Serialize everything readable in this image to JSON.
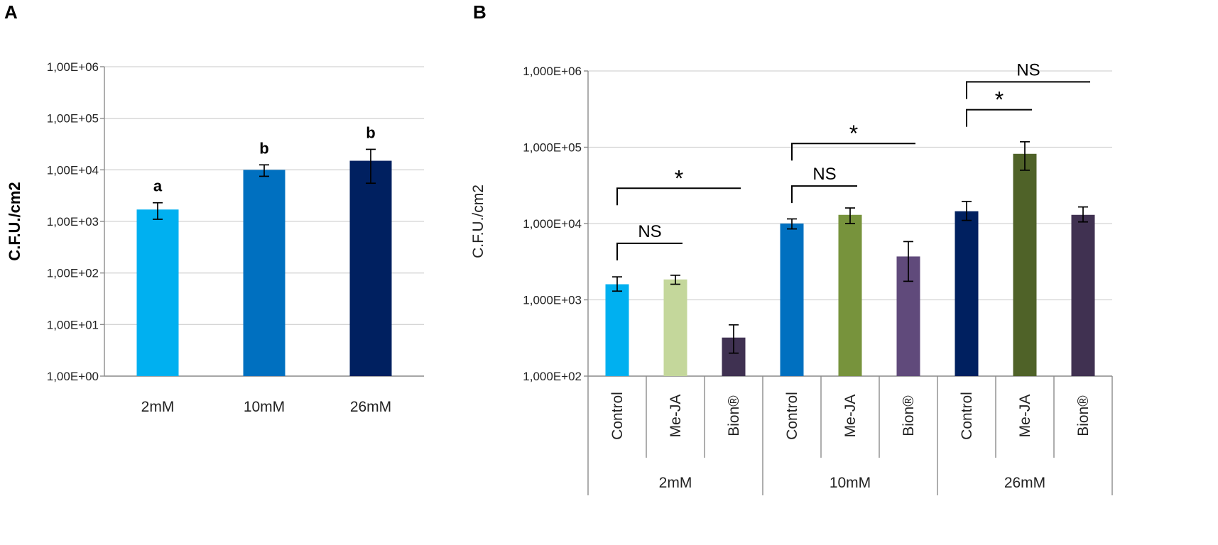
{
  "panels": [
    {
      "letter": "A"
    },
    {
      "letter": "B"
    }
  ],
  "chart_data": [
    {
      "panel": "A",
      "type": "bar",
      "scale": "log",
      "title": "",
      "ylabel": "C.F.U./cm2",
      "xlabel": "",
      "ylim": [
        1,
        1000000
      ],
      "yticks": [
        1,
        10,
        100,
        1000,
        10000,
        100000,
        1000000
      ],
      "ytick_labels": [
        "1,00E+00",
        "1,00E+01",
        "1,00E+02",
        "1,00E+03",
        "1,00E+04",
        "1,00E+05",
        "1,00E+06"
      ],
      "categories": [
        "2mM",
        "10mM",
        "26mM"
      ],
      "values": [
        1700,
        10000,
        15000
      ],
      "error_low": [
        1100,
        7500,
        5500
      ],
      "error_high": [
        2300,
        12500,
        25000
      ],
      "colors": [
        "#00b0f0",
        "#0070c0",
        "#002060"
      ],
      "annotations": [
        "a",
        "b",
        "b"
      ]
    },
    {
      "panel": "B",
      "type": "bar",
      "scale": "log",
      "title": "",
      "ylabel": "C.F.U./cm2",
      "xlabel": "",
      "ylim": [
        100,
        1000000
      ],
      "yticks": [
        100,
        1000,
        10000,
        100000,
        1000000
      ],
      "ytick_labels": [
        "1,000E+02",
        "1,000E+03",
        "1,000E+04",
        "1,000E+05",
        "1,000E+06"
      ],
      "groups": [
        {
          "label": "2mM",
          "bars": [
            {
              "label": "Control",
              "value": 1600,
              "low": 1300,
              "high": 2000,
              "color": "#00b0f0"
            },
            {
              "label": "Me-JA",
              "value": 1850,
              "low": 1600,
              "high": 2100,
              "color": "#c4d79b"
            },
            {
              "label": "Bion®",
              "value": 320,
              "low": 200,
              "high": 470,
              "color": "#3f3151"
            }
          ]
        },
        {
          "label": "10mM",
          "bars": [
            {
              "label": "Control",
              "value": 10000,
              "low": 8500,
              "high": 11500,
              "color": "#0070c0"
            },
            {
              "label": "Me-JA",
              "value": 13000,
              "low": 10000,
              "high": 16000,
              "color": "#77933c"
            },
            {
              "label": "Bion®",
              "value": 3700,
              "low": 1750,
              "high": 5800,
              "color": "#604a7b"
            }
          ]
        },
        {
          "label": "26mM",
          "bars": [
            {
              "label": "Control",
              "value": 14500,
              "low": 11000,
              "high": 19500,
              "color": "#002060"
            },
            {
              "label": "Me-JA",
              "value": 82000,
              "low": 50000,
              "high": 118000,
              "color": "#4f6228"
            },
            {
              "label": "Bion®",
              "value": 13000,
              "low": 10500,
              "high": 16500,
              "color": "#403151"
            }
          ]
        }
      ],
      "comparisons": [
        {
          "group": 0,
          "from": 0,
          "to": 1,
          "label": "NS",
          "level": 5500
        },
        {
          "group": 0,
          "from": 0,
          "to": 2,
          "label": "*",
          "level": 29000
        },
        {
          "group": 1,
          "from": 0,
          "to": 1,
          "label": "NS",
          "level": 31000
        },
        {
          "group": 1,
          "from": 0,
          "to": 2,
          "label": "*",
          "level": 112000
        },
        {
          "group": 2,
          "from": 0,
          "to": 1,
          "label": "*",
          "level": 310000
        },
        {
          "group": 2,
          "from": 0,
          "to": 2,
          "label": "NS",
          "level": 720000
        }
      ]
    }
  ]
}
